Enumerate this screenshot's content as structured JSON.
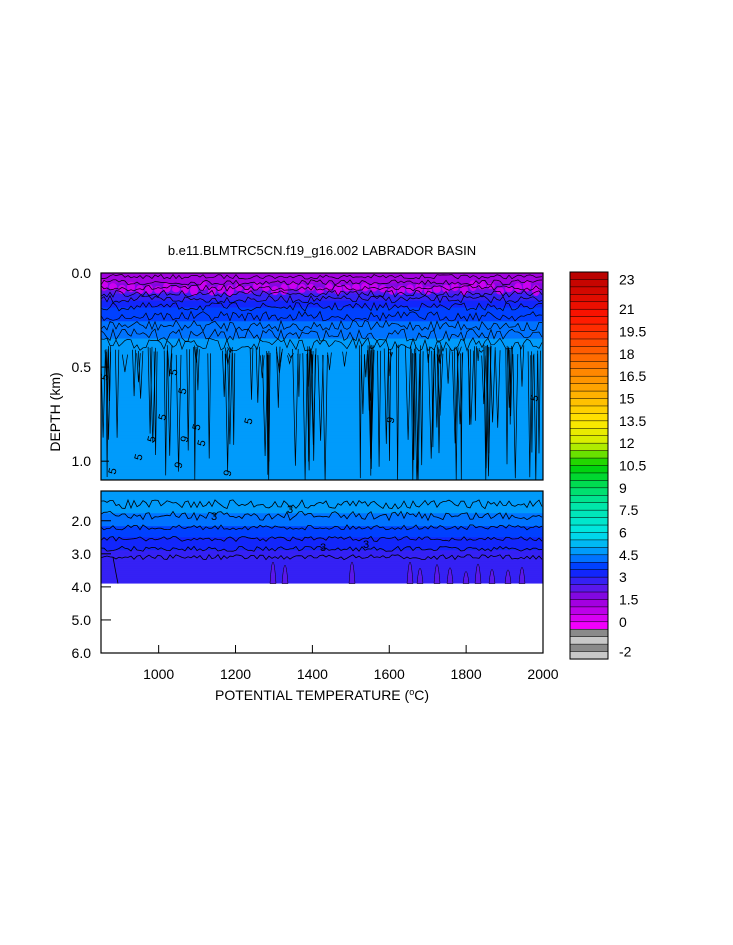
{
  "chart_data": {
    "type": "heatmap",
    "subtype": "filled-contour",
    "title": "b.e11.BLMTRC5CN.f19_g16.002 LABRADOR BASIN",
    "xlabel": "POTENTIAL TEMPERATURE (",
    "xlabel_sup": "o",
    "xlabel_end": "C)",
    "ylabel": "DEPTH (km)",
    "xlim": [
      850,
      2000
    ],
    "x_ticks": [
      1000,
      1200,
      1400,
      1600,
      1800,
      2000
    ],
    "upper_panel": {
      "ylim": [
        0.0,
        1.1
      ],
      "y_ticks": [
        {
          "v": 0.0,
          "label": "0.0"
        },
        {
          "v": 0.5,
          "label": "0.5"
        },
        {
          "v": 1.0,
          "label": "1.0"
        }
      ]
    },
    "lower_panel": {
      "ylim": [
        1.1,
        6.0
      ],
      "y_ticks": [
        {
          "v": 2.0,
          "label": "2.0"
        },
        {
          "v": 3.0,
          "label": "3.0"
        },
        {
          "v": 4.0,
          "label": "4.0"
        },
        {
          "v": 5.0,
          "label": "5.0"
        },
        {
          "v": 6.0,
          "label": "6.0"
        }
      ],
      "data_bottom": 3.9
    },
    "contour_label": "5",
    "contour_label_b": "9",
    "contour_label_c": "3",
    "colorbar": {
      "min": -2.5,
      "max": 23.5,
      "step": 0.5,
      "labels": [
        "23",
        "21",
        "19.5",
        "18",
        "16.5",
        "15",
        "13.5",
        "12",
        "10.5",
        "9",
        "7.5",
        "6",
        "4.5",
        "3",
        "1.5",
        "0",
        "-2"
      ],
      "label_values": [
        23,
        21,
        19.5,
        18,
        16.5,
        15,
        13.5,
        12,
        10.5,
        9,
        7.5,
        6,
        4.5,
        3,
        1.5,
        0,
        -2
      ]
    },
    "depth_profile_levels": [
      {
        "depth": 0.0,
        "value": 1.0
      },
      {
        "depth": 0.05,
        "value": 1.3
      },
      {
        "depth": 0.12,
        "value": 2.8
      },
      {
        "depth": 0.2,
        "value": 3.6
      },
      {
        "depth": 0.3,
        "value": 4.3
      },
      {
        "depth": 0.4,
        "value": 4.7
      },
      {
        "depth": 1.1,
        "value": 5.0
      },
      {
        "depth": 1.6,
        "value": 4.7
      },
      {
        "depth": 2.0,
        "value": 4.2
      },
      {
        "depth": 2.5,
        "value": 3.5
      },
      {
        "depth": 3.0,
        "value": 2.9
      },
      {
        "depth": 3.9,
        "value": 2.5
      }
    ]
  }
}
